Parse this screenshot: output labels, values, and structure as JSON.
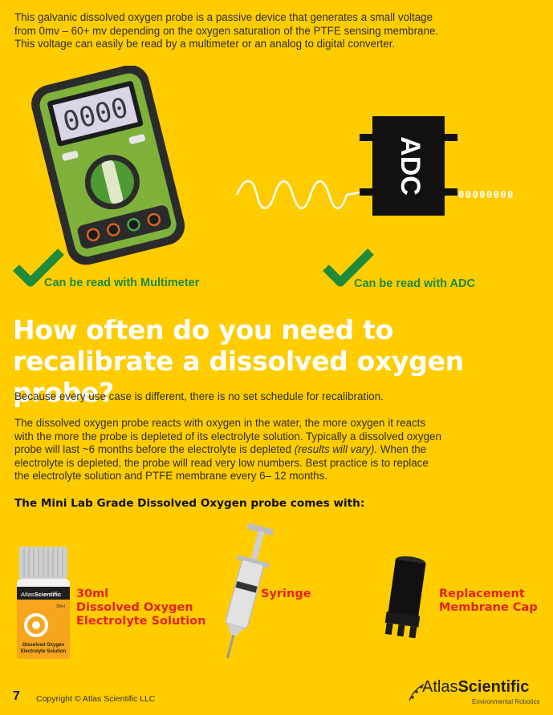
{
  "intro": {
    "line1": "This galvanic dissolved oxygen probe is a passive device that generates a small voltage",
    "line2": "from 0mv – 60+ mv depending on the oxygen saturation of the PTFE sensing membrane.",
    "line3": "This voltage can easily be read by a multimeter or an analog to digital converter."
  },
  "meter": {
    "display": "0000"
  },
  "adc": {
    "label": "ADC",
    "bits": "00000000"
  },
  "checks": {
    "multimeter": "Can be read with Multimeter",
    "adc": "Can be read with ADC"
  },
  "heading": {
    "line1": "How often do you need to",
    "line2": "recalibrate a dissolved oxygen probe?"
  },
  "para1": "Because every use case is different, there is no set schedule for recalibration.",
  "para2": {
    "line1": "The dissolved oxygen probe reacts with oxygen in the water, the more oxygen it reacts",
    "line2": "with the more the probe is depleted of its electrolyte solution. Typically a dissolved oxygen",
    "line3a": "probe will last ~6 months before the electrolyte is depleted ",
    "line3b": "(results will vary).",
    "line3c": " When the",
    "line4": "electrolyte is depleted, the probe will read very low numbers. Best practice is to replace",
    "line5": "the electrolyte solution and PTFE membrane every 6– 12 months."
  },
  "comes_with": "The Mini Lab Grade Dissolved Oxygen probe comes with:",
  "items": {
    "solution": {
      "line1": "30ml",
      "line2": "Dissolved Oxygen",
      "line3": "Electrolyte Solution"
    },
    "syringe": "Syringe",
    "cap": {
      "line1": "Replacement",
      "line2": "Membrane Cap"
    }
  },
  "bottle": {
    "brand_a": "Atlas",
    "brand_b": "Scientific",
    "volume": "30ml",
    "label1": "Dissolved Oxygen",
    "label2": "Electrolyte Solution"
  },
  "footer": {
    "page": "7",
    "copyright": "Copyright © Atlas Scientific LLC",
    "logo_a": "Atlas",
    "logo_b": "Scientific",
    "logo_sub": "Environmental Robotics"
  },
  "colors": {
    "background": "#FFCC00",
    "heading": "#FFFFFF",
    "check": "#1E8A3A",
    "item_label": "#E3241B"
  }
}
